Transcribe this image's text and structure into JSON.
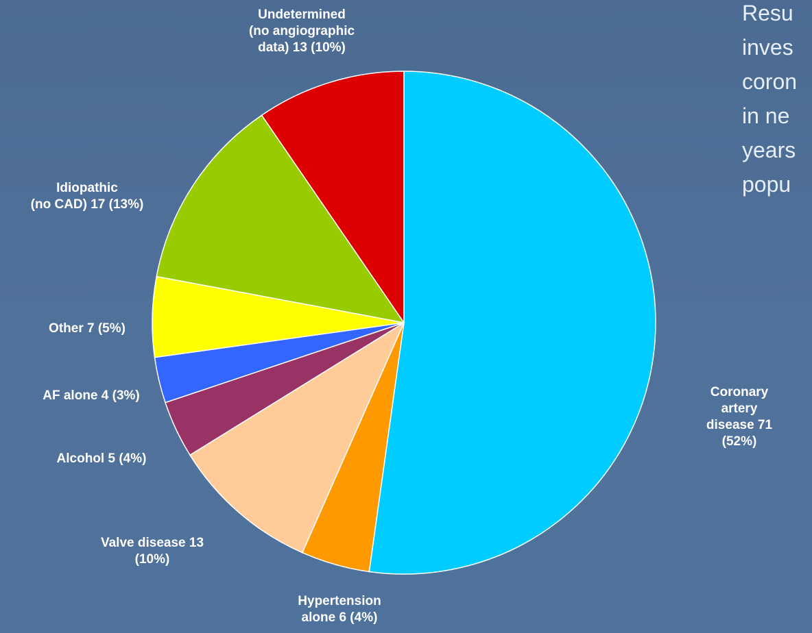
{
  "chart_data": {
    "type": "pie",
    "categories": [
      "Coronary artery\ndisease 71 (52%)",
      "Hypertension\nalone 6 (4%)",
      "Valve disease 13\n(10%)",
      "Alcohol 5 (4%)",
      "AF alone 4 (3%)",
      "Other 7 (5%)",
      "Idiopathic\n(no CAD) 17 (13%)",
      "Undetermined\n(no angiographic\ndata) 13 (10%)"
    ],
    "values": [
      71,
      6,
      13,
      5,
      4,
      7,
      17,
      13
    ],
    "colors": [
      "#00ccff",
      "#ff9900",
      "#ffcc99",
      "#993366",
      "#3366ff",
      "#ffff00",
      "#99cc00",
      "#dd0000"
    ]
  },
  "side_text": [
    "Resu",
    "inves",
    "coron",
    "in ne",
    "years",
    "popu"
  ]
}
